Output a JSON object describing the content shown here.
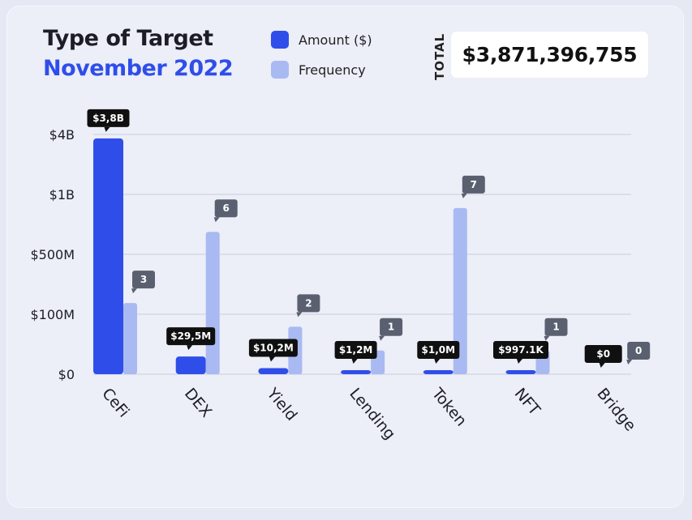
{
  "header": {
    "title": "Type of Target",
    "subtitle": "November 2022",
    "total_label": "TOTAL",
    "total_value": "$3,871,396,755"
  },
  "legend": [
    {
      "label": "Amount ($)",
      "color": "#2f4ee9"
    },
    {
      "label": "Frequency",
      "color": "#a9b9f2"
    }
  ],
  "colors": {
    "amount": "#2f4ee9",
    "frequency": "#a9b9f2",
    "label_bg_dark": "#101010",
    "label_bg_gray": "#5b6070",
    "grid": "#c9cdd9"
  },
  "chart_data": {
    "type": "bar",
    "y_scale": "piecewise",
    "yticks": [
      {
        "label": "$0",
        "value": 0
      },
      {
        "label": "$100M",
        "value": 100000000
      },
      {
        "label": "$500M",
        "value": 500000000
      },
      {
        "label": "$1B",
        "value": 1000000000
      },
      {
        "label": "$4B",
        "value": 4000000000
      }
    ],
    "grid": true,
    "legend_position": "top",
    "categories": [
      "CeFi",
      "DEX",
      "Yield",
      "Lending",
      "Token",
      "NFT",
      "Bridge"
    ],
    "series": [
      {
        "name": "Amount ($)",
        "values": [
          3800000000,
          29500000,
          10200000,
          1200000,
          1000000,
          997100,
          0
        ],
        "labels": [
          "$3,8B",
          "$29,5M",
          "$10,2M",
          "$1,2M",
          "$1,0M",
          "$997.1K",
          "$0"
        ]
      },
      {
        "name": "Frequency",
        "values": [
          3,
          6,
          2,
          1,
          7,
          1,
          0
        ],
        "labels": [
          "3",
          "6",
          "2",
          "1",
          "7",
          "1",
          "0"
        ]
      }
    ]
  }
}
